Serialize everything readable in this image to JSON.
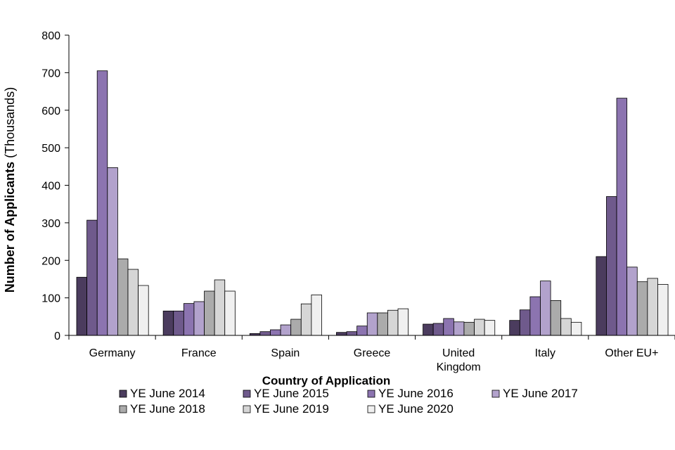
{
  "chart_data": {
    "type": "bar",
    "xlabel": "Country of Application",
    "ylabel_bold": "Number of Applicants",
    "ylabel_rest": " (Thousands)",
    "ylim": [
      0,
      800
    ],
    "yticks": [
      0,
      100,
      200,
      300,
      400,
      500,
      600,
      700,
      800
    ],
    "grid": false,
    "legend_position": "bottom",
    "categories": [
      [
        "Germany"
      ],
      [
        "France"
      ],
      [
        "Spain"
      ],
      [
        "Greece"
      ],
      [
        "United",
        "Kingdom"
      ],
      [
        "Italy"
      ],
      [
        "Other EU+"
      ]
    ],
    "series": [
      {
        "name": "YE June 2014",
        "color": "#4b3c5e",
        "values": [
          155,
          65,
          5,
          8,
          30,
          40,
          210
        ]
      },
      {
        "name": "YE June 2015",
        "color": "#6f5a8c",
        "values": [
          307,
          65,
          10,
          10,
          32,
          68,
          370
        ]
      },
      {
        "name": "YE June 2016",
        "color": "#8c74b0",
        "values": [
          705,
          85,
          15,
          25,
          45,
          103,
          632
        ]
      },
      {
        "name": "YE June 2017",
        "color": "#b2a2cc",
        "values": [
          447,
          90,
          28,
          60,
          36,
          145,
          182
        ]
      },
      {
        "name": "YE June 2018",
        "color": "#ababab",
        "values": [
          204,
          118,
          43,
          60,
          35,
          93,
          143
        ]
      },
      {
        "name": "YE June 2019",
        "color": "#d6d6d6",
        "values": [
          176,
          148,
          84,
          67,
          43,
          45,
          152
        ]
      },
      {
        "name": "YE June 2020",
        "color": "#f0f0f0",
        "values": [
          133,
          118,
          108,
          71,
          40,
          35,
          136
        ]
      }
    ]
  }
}
